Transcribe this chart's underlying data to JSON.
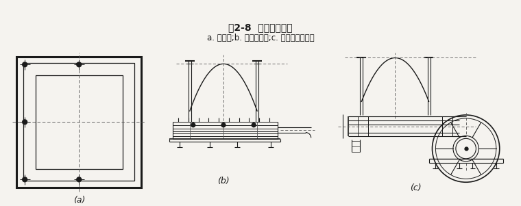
{
  "title": "图2-8  进料和出料口",
  "subtitle": "a. 进料口;b. 手动出料口;c. 齿条传动出料口",
  "label_a": "(a)",
  "label_b": "(b)",
  "label_c": "(c)",
  "bg_color": "#f5f3ef",
  "line_color": "#1a1a1a",
  "dash_color": "#555555",
  "title_fontsize": 10,
  "subtitle_fontsize": 8.5,
  "label_fontsize": 9
}
